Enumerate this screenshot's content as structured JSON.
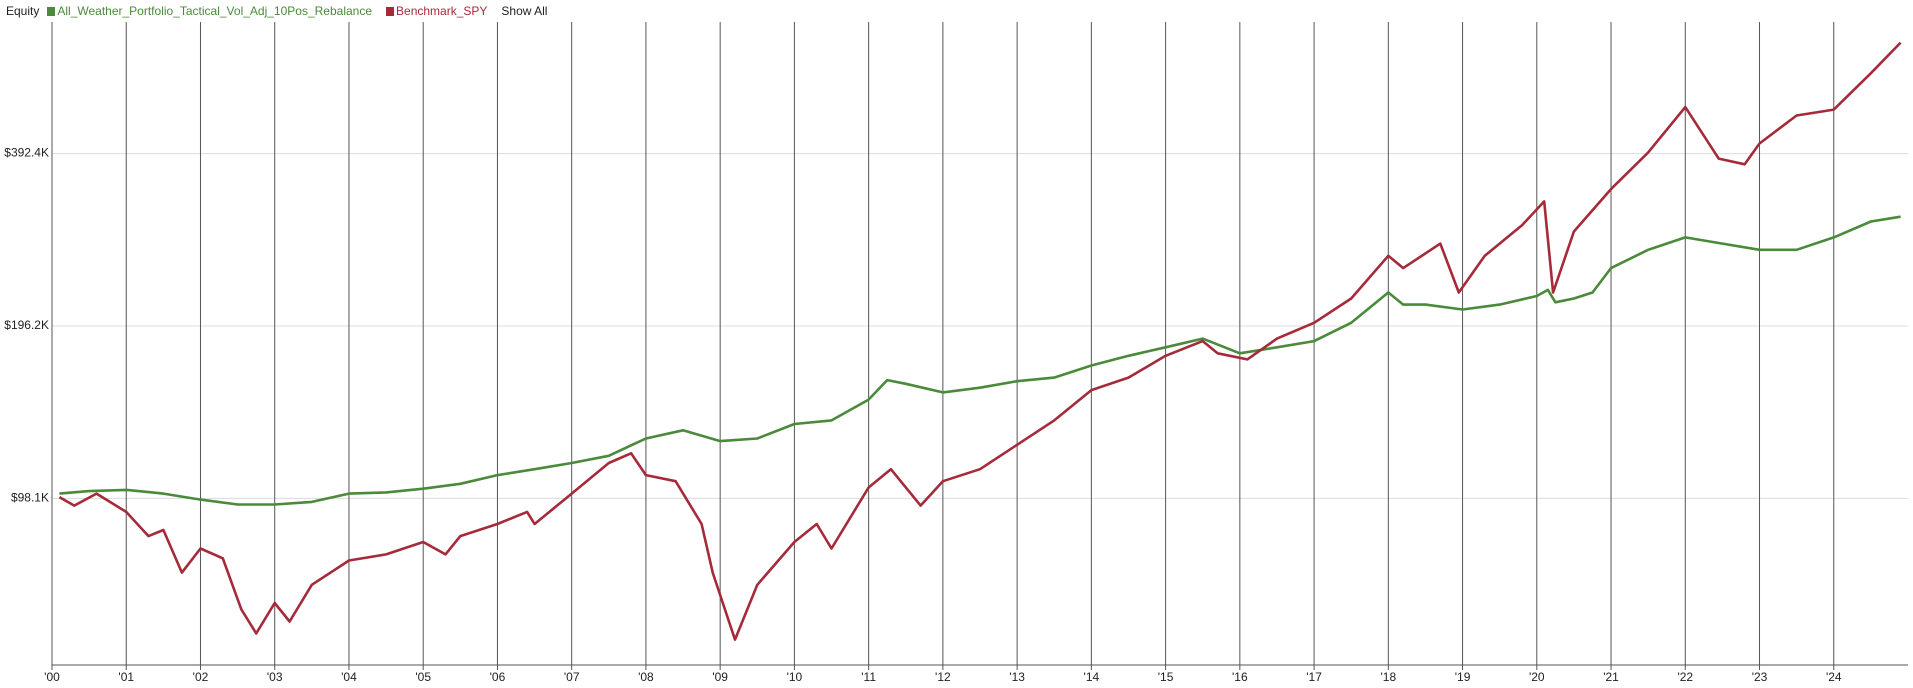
{
  "chart_data": {
    "type": "line",
    "title": "Equity",
    "show_all": "Show All",
    "yscale": "log",
    "grid": true,
    "xlim": [
      2000,
      2025
    ],
    "xticks": [
      {
        "value": 2000,
        "label": "'00"
      },
      {
        "value": 2001,
        "label": "'01"
      },
      {
        "value": 2002,
        "label": "'02"
      },
      {
        "value": 2003,
        "label": "'03"
      },
      {
        "value": 2004,
        "label": "'04"
      },
      {
        "value": 2005,
        "label": "'05"
      },
      {
        "value": 2006,
        "label": "'06"
      },
      {
        "value": 2007,
        "label": "'07"
      },
      {
        "value": 2008,
        "label": "'08"
      },
      {
        "value": 2009,
        "label": "'09"
      },
      {
        "value": 2010,
        "label": "'10"
      },
      {
        "value": 2011,
        "label": "'11"
      },
      {
        "value": 2012,
        "label": "'12"
      },
      {
        "value": 2013,
        "label": "'13"
      },
      {
        "value": 2014,
        "label": "'14"
      },
      {
        "value": 2015,
        "label": "'15"
      },
      {
        "value": 2016,
        "label": "'16"
      },
      {
        "value": 2017,
        "label": "'17"
      },
      {
        "value": 2018,
        "label": "'18"
      },
      {
        "value": 2019,
        "label": "'19"
      },
      {
        "value": 2020,
        "label": "'20"
      },
      {
        "value": 2021,
        "label": "'21"
      },
      {
        "value": 2022,
        "label": "'22"
      },
      {
        "value": 2023,
        "label": "'23"
      },
      {
        "value": 2024,
        "label": "'24"
      }
    ],
    "ylim": [
      50200,
      666000
    ],
    "yticks": [
      {
        "value": 98100,
        "label": "$98.1K"
      },
      {
        "value": 196200,
        "label": "$196.2K"
      },
      {
        "value": 392400,
        "label": "$392.4K"
      }
    ],
    "series": [
      {
        "name": "All_Weather_Portfolio_Tactical_Vol_Adj_10Pos_Rebalance",
        "color": "#4a8a3a",
        "x": [
          2000.1,
          2000.5,
          2001.0,
          2001.5,
          2002.0,
          2002.5,
          2003.0,
          2003.5,
          2004.0,
          2004.5,
          2005.0,
          2005.5,
          2006.0,
          2006.5,
          2007.0,
          2007.5,
          2008.0,
          2008.5,
          2009.0,
          2009.5,
          2010.0,
          2010.5,
          2011.0,
          2011.25,
          2011.5,
          2012.0,
          2012.5,
          2013.0,
          2013.5,
          2014.0,
          2014.5,
          2015.0,
          2015.5,
          2016.0,
          2016.5,
          2017.0,
          2017.5,
          2018.0,
          2018.2,
          2018.5,
          2019.0,
          2019.5,
          2020.0,
          2020.15,
          2020.25,
          2020.5,
          2020.75,
          2021.0,
          2021.5,
          2022.0,
          2022.5,
          2023.0,
          2023.5,
          2024.0,
          2024.5,
          2024.9
        ],
        "values": [
          100000,
          101000,
          101500,
          100000,
          97600,
          95700,
          95700,
          96700,
          100000,
          100500,
          102000,
          104000,
          107700,
          110300,
          113100,
          116400,
          124800,
          129000,
          123500,
          124800,
          132300,
          134200,
          145900,
          157800,
          155500,
          150200,
          153100,
          157100,
          159400,
          167400,
          174000,
          180100,
          186500,
          175800,
          180100,
          184600,
          198700,
          224500,
          213800,
          213800,
          209600,
          213800,
          221300,
          226800,
          215800,
          219100,
          224500,
          247600,
          266500,
          280100,
          273200,
          266500,
          266500,
          280100,
          298600,
          304400
        ]
      },
      {
        "name": "Benchmark_SPY",
        "color": "#a52a3a",
        "x": [
          2000.1,
          2000.3,
          2000.6,
          2001.0,
          2001.3,
          2001.5,
          2001.75,
          2002.0,
          2002.3,
          2002.55,
          2002.75,
          2003.0,
          2003.2,
          2003.5,
          2004.0,
          2004.5,
          2005.0,
          2005.3,
          2005.5,
          2006.0,
          2006.4,
          2006.5,
          2007.0,
          2007.5,
          2007.8,
          2008.0,
          2008.4,
          2008.75,
          2008.9,
          2009.2,
          2009.5,
          2010.0,
          2010.3,
          2010.5,
          2011.0,
          2011.3,
          2011.7,
          2012.0,
          2012.5,
          2013.0,
          2013.5,
          2014.0,
          2014.5,
          2015.0,
          2015.5,
          2015.7,
          2016.1,
          2016.5,
          2017.0,
          2017.5,
          2018.0,
          2018.2,
          2018.7,
          2018.95,
          2019.3,
          2019.8,
          2020.1,
          2020.22,
          2020.5,
          2021.0,
          2021.5,
          2022.0,
          2022.45,
          2022.8,
          2023.0,
          2023.5,
          2024.0,
          2024.5,
          2024.9
        ],
        "values": [
          98600,
          95300,
          100000,
          92900,
          84300,
          86400,
          72800,
          80200,
          77100,
          62800,
          57000,
          64400,
          59800,
          69300,
          76400,
          78300,
          82300,
          78300,
          84300,
          88500,
          92900,
          88500,
          100000,
          113100,
          117600,
          107700,
          105100,
          88500,
          72800,
          55600,
          69300,
          82300,
          88500,
          80200,
          102500,
          110300,
          95300,
          105100,
          110300,
          121700,
          134200,
          151600,
          159400,
          174000,
          184600,
          175800,
          171500,
          186500,
          198700,
          219100,
          260100,
          247600,
          273200,
          224500,
          260100,
          294100,
          323700,
          224500,
          286900,
          340200,
          394200,
          473100,
          384600,
          375800,
          408600,
          457300,
          468300,
          542100,
          613100
        ]
      }
    ]
  }
}
